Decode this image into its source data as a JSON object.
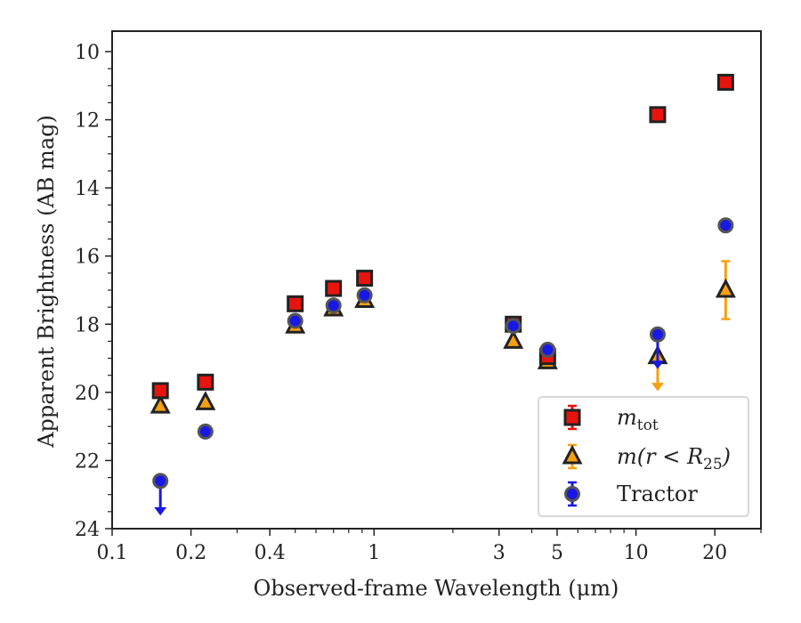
{
  "chart_data": {
    "type": "scatter",
    "title": "",
    "xlabel": "Observed-frame Wavelength (μm)",
    "ylabel": "Apparent Brightness (AB mag)",
    "x_scale": "log",
    "xlim": [
      0.1,
      30
    ],
    "ylim": [
      24,
      9.4
    ],
    "y_inverted": true,
    "x_ticks": [
      0.1,
      0.2,
      0.4,
      1,
      3,
      5,
      10,
      20
    ],
    "x_tick_labels": [
      "0.1",
      "0.2",
      "0.4",
      "1",
      "3",
      "5",
      "10",
      "20"
    ],
    "y_ticks": [
      10,
      12,
      14,
      16,
      18,
      20,
      22,
      24
    ],
    "y_tick_labels": [
      "10",
      "12",
      "14",
      "16",
      "18",
      "20",
      "22",
      "24"
    ],
    "grid": false,
    "legend_position": "bottom-right",
    "series": [
      {
        "name": "m_tot",
        "legend_label": "m",
        "legend_sub": "tot",
        "marker": "square",
        "color": "#e8140e",
        "error_color": "#e8140e",
        "x": [
          0.1528,
          0.2271,
          0.5,
          0.7,
          0.92,
          3.4,
          4.6,
          12.1,
          22.0
        ],
        "y": [
          19.95,
          19.7,
          17.4,
          16.95,
          16.65,
          18.0,
          18.95,
          11.85,
          10.9
        ],
        "yerr": [
          0.05,
          0.05,
          0.03,
          0.03,
          0.03,
          0.03,
          0.05,
          0.05,
          0.05
        ],
        "upper_limit": [
          false,
          false,
          false,
          false,
          false,
          false,
          false,
          false,
          false
        ]
      },
      {
        "name": "m(r < R25)",
        "legend_label": "m(r < R",
        "legend_sub": "25",
        "legend_tail": ")",
        "marker": "triangle",
        "color": "#f5a00f",
        "error_color": "#f5a00f",
        "x": [
          0.1528,
          0.2271,
          0.5,
          0.7,
          0.92,
          3.4,
          4.6,
          12.1,
          22.0
        ],
        "y": [
          20.4,
          20.3,
          18.05,
          17.55,
          17.3,
          18.5,
          19.1,
          18.95,
          17.0
        ],
        "yerr": [
          0.05,
          0.05,
          0.03,
          0.03,
          0.03,
          0.03,
          0.05,
          0.0,
          0.85
        ],
        "upper_limit": [
          false,
          false,
          false,
          false,
          false,
          false,
          false,
          true,
          false
        ]
      },
      {
        "name": "Tractor",
        "legend_label": "Tractor",
        "marker": "circle",
        "color": "#1818e6",
        "error_color": "#1818e6",
        "x": [
          0.1528,
          0.2271,
          0.5,
          0.7,
          0.92,
          3.4,
          4.6,
          12.1,
          22.0
        ],
        "y": [
          22.6,
          21.15,
          17.9,
          17.45,
          17.15,
          18.05,
          18.75,
          18.3,
          15.1
        ],
        "yerr": [
          0.0,
          0.05,
          0.05,
          0.05,
          0.05,
          0.05,
          0.1,
          0.0,
          0.05
        ],
        "upper_limit": [
          true,
          false,
          false,
          false,
          false,
          false,
          false,
          true,
          false
        ]
      }
    ]
  }
}
